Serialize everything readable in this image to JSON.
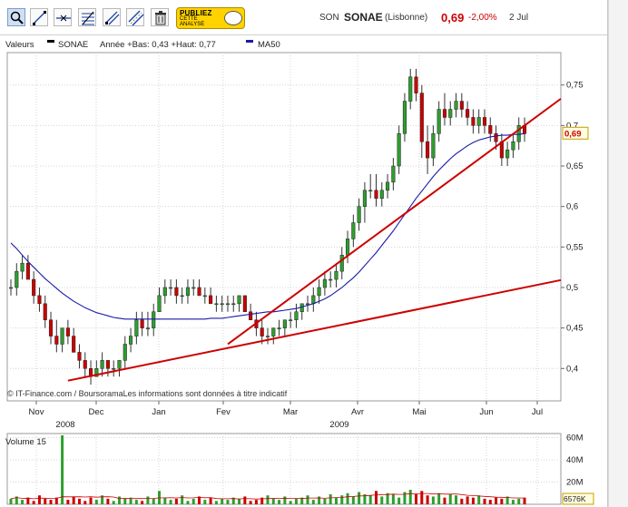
{
  "toolbar": {
    "tools": [
      "zoom-icon",
      "draw-line-icon",
      "horizontal-line-icon",
      "retracement-icon",
      "trend-channel-icon",
      "parallel-lines-icon",
      "trash-icon"
    ],
    "publish_button": {
      "line1": "PUBLIEZ",
      "line2": "CETTE",
      "line3": "ANALYSE"
    }
  },
  "quote": {
    "source": "SON",
    "name": "SONAE",
    "place": "(Lisbonne)",
    "price": "0,69",
    "change": "-2,00%",
    "date": "2 Jul",
    "up_color": "#2e9e2e",
    "down_color": "#cc0000"
  },
  "legend": {
    "values_label": "Valeurs",
    "series_name": "SONAE",
    "range_text": "Année +Bas: 0,43 +Haut: 0,77",
    "ma_name": "MA50",
    "ma_color": "#1a1aa8"
  },
  "footer": "© IT-Finance.com / BoursoramaLes informations sont données à titre indicatif",
  "chart_data": [
    {
      "type": "candlestick",
      "title": "SONAE",
      "x_tick_labels": [
        "Nov",
        "Dec",
        "Jan",
        "Fev",
        "Mar",
        "Avr",
        "Mai",
        "Jun",
        "Jul"
      ],
      "x_year_labels": [
        "2008",
        "2009"
      ],
      "y_tick_labels": [
        "0,4",
        "0,45",
        "0,5",
        "0,55",
        "0,6",
        "0,65",
        "0,7",
        "0,75"
      ],
      "ylim": [
        0.36,
        0.79
      ],
      "grid": true,
      "last_value_label": "0,69",
      "ohlc": [
        [
          0.5,
          0.51,
          0.49,
          0.5
        ],
        [
          0.5,
          0.53,
          0.49,
          0.52
        ],
        [
          0.52,
          0.54,
          0.51,
          0.53
        ],
        [
          0.53,
          0.54,
          0.51,
          0.51
        ],
        [
          0.51,
          0.52,
          0.48,
          0.49
        ],
        [
          0.49,
          0.5,
          0.47,
          0.48
        ],
        [
          0.48,
          0.49,
          0.45,
          0.46
        ],
        [
          0.46,
          0.47,
          0.43,
          0.44
        ],
        [
          0.44,
          0.46,
          0.42,
          0.43
        ],
        [
          0.43,
          0.45,
          0.42,
          0.45
        ],
        [
          0.45,
          0.46,
          0.43,
          0.44
        ],
        [
          0.44,
          0.45,
          0.42,
          0.42
        ],
        [
          0.42,
          0.43,
          0.4,
          0.41
        ],
        [
          0.41,
          0.42,
          0.39,
          0.4
        ],
        [
          0.4,
          0.41,
          0.38,
          0.39
        ],
        [
          0.39,
          0.41,
          0.39,
          0.4
        ],
        [
          0.4,
          0.42,
          0.39,
          0.41
        ],
        [
          0.41,
          0.41,
          0.39,
          0.4
        ],
        [
          0.4,
          0.41,
          0.39,
          0.4
        ],
        [
          0.4,
          0.41,
          0.39,
          0.41
        ],
        [
          0.41,
          0.44,
          0.4,
          0.43
        ],
        [
          0.43,
          0.45,
          0.42,
          0.44
        ],
        [
          0.44,
          0.47,
          0.43,
          0.46
        ],
        [
          0.46,
          0.47,
          0.44,
          0.45
        ],
        [
          0.45,
          0.47,
          0.44,
          0.45
        ],
        [
          0.45,
          0.48,
          0.44,
          0.47
        ],
        [
          0.47,
          0.5,
          0.47,
          0.49
        ],
        [
          0.49,
          0.51,
          0.48,
          0.5
        ],
        [
          0.5,
          0.51,
          0.49,
          0.5
        ],
        [
          0.5,
          0.51,
          0.48,
          0.49
        ],
        [
          0.49,
          0.5,
          0.48,
          0.49
        ],
        [
          0.49,
          0.51,
          0.48,
          0.5
        ],
        [
          0.5,
          0.51,
          0.49,
          0.5
        ],
        [
          0.5,
          0.51,
          0.49,
          0.49
        ],
        [
          0.49,
          0.5,
          0.48,
          0.49
        ],
        [
          0.49,
          0.5,
          0.48,
          0.48
        ],
        [
          0.48,
          0.49,
          0.47,
          0.48
        ],
        [
          0.48,
          0.49,
          0.47,
          0.48
        ],
        [
          0.48,
          0.49,
          0.47,
          0.48
        ],
        [
          0.48,
          0.49,
          0.47,
          0.48
        ],
        [
          0.48,
          0.49,
          0.47,
          0.49
        ],
        [
          0.49,
          0.49,
          0.47,
          0.47
        ],
        [
          0.47,
          0.48,
          0.46,
          0.46
        ],
        [
          0.46,
          0.47,
          0.44,
          0.45
        ],
        [
          0.45,
          0.46,
          0.43,
          0.44
        ],
        [
          0.44,
          0.45,
          0.43,
          0.44
        ],
        [
          0.44,
          0.45,
          0.43,
          0.45
        ],
        [
          0.45,
          0.46,
          0.44,
          0.45
        ],
        [
          0.45,
          0.46,
          0.44,
          0.46
        ],
        [
          0.46,
          0.47,
          0.45,
          0.46
        ],
        [
          0.46,
          0.48,
          0.45,
          0.47
        ],
        [
          0.47,
          0.48,
          0.46,
          0.48
        ],
        [
          0.48,
          0.49,
          0.47,
          0.48
        ],
        [
          0.48,
          0.5,
          0.47,
          0.49
        ],
        [
          0.49,
          0.51,
          0.48,
          0.5
        ],
        [
          0.5,
          0.52,
          0.49,
          0.51
        ],
        [
          0.51,
          0.52,
          0.5,
          0.51
        ],
        [
          0.51,
          0.53,
          0.5,
          0.52
        ],
        [
          0.52,
          0.55,
          0.51,
          0.54
        ],
        [
          0.54,
          0.57,
          0.53,
          0.56
        ],
        [
          0.56,
          0.59,
          0.55,
          0.58
        ],
        [
          0.58,
          0.61,
          0.57,
          0.6
        ],
        [
          0.6,
          0.63,
          0.58,
          0.62
        ],
        [
          0.62,
          0.64,
          0.61,
          0.62
        ],
        [
          0.62,
          0.64,
          0.6,
          0.61
        ],
        [
          0.61,
          0.63,
          0.6,
          0.62
        ],
        [
          0.62,
          0.64,
          0.61,
          0.63
        ],
        [
          0.63,
          0.66,
          0.62,
          0.65
        ],
        [
          0.65,
          0.7,
          0.64,
          0.69
        ],
        [
          0.69,
          0.74,
          0.68,
          0.73
        ],
        [
          0.73,
          0.77,
          0.72,
          0.76
        ],
        [
          0.76,
          0.77,
          0.73,
          0.74
        ],
        [
          0.74,
          0.75,
          0.66,
          0.68
        ],
        [
          0.68,
          0.7,
          0.64,
          0.66
        ],
        [
          0.66,
          0.7,
          0.65,
          0.69
        ],
        [
          0.69,
          0.73,
          0.68,
          0.72
        ],
        [
          0.72,
          0.74,
          0.7,
          0.71
        ],
        [
          0.71,
          0.73,
          0.7,
          0.72
        ],
        [
          0.72,
          0.74,
          0.71,
          0.73
        ],
        [
          0.73,
          0.74,
          0.71,
          0.72
        ],
        [
          0.72,
          0.73,
          0.7,
          0.71
        ],
        [
          0.71,
          0.72,
          0.69,
          0.7
        ],
        [
          0.7,
          0.72,
          0.69,
          0.71
        ],
        [
          0.71,
          0.72,
          0.69,
          0.7
        ],
        [
          0.7,
          0.71,
          0.68,
          0.69
        ],
        [
          0.69,
          0.7,
          0.67,
          0.68
        ],
        [
          0.68,
          0.69,
          0.65,
          0.66
        ],
        [
          0.66,
          0.68,
          0.65,
          0.67
        ],
        [
          0.67,
          0.69,
          0.66,
          0.68
        ],
        [
          0.68,
          0.71,
          0.67,
          0.7
        ],
        [
          0.7,
          0.71,
          0.68,
          0.69
        ]
      ],
      "ma50": [
        0.555,
        0.548,
        0.54,
        0.532,
        0.525,
        0.518,
        0.511,
        0.505,
        0.499,
        0.493,
        0.488,
        0.483,
        0.479,
        0.475,
        0.472,
        0.469,
        0.467,
        0.465,
        0.463,
        0.462,
        0.461,
        0.461,
        0.461,
        0.461,
        0.461,
        0.461,
        0.461,
        0.461,
        0.461,
        0.461,
        0.461,
        0.461,
        0.461,
        0.461,
        0.461,
        0.462,
        0.462,
        0.462,
        0.463,
        0.464,
        0.465,
        0.466,
        0.467,
        0.468,
        0.469,
        0.47,
        0.47,
        0.471,
        0.472,
        0.473,
        0.474,
        0.476,
        0.478,
        0.48,
        0.483,
        0.486,
        0.49,
        0.495,
        0.5,
        0.506,
        0.512,
        0.519,
        0.527,
        0.535,
        0.543,
        0.552,
        0.561,
        0.57,
        0.58,
        0.59,
        0.6,
        0.61,
        0.619,
        0.628,
        0.637,
        0.645,
        0.652,
        0.659,
        0.665,
        0.67,
        0.675,
        0.679,
        0.682,
        0.684,
        0.686,
        0.687,
        0.688,
        0.688,
        0.689,
        0.689,
        0.69
      ],
      "trendlines": [
        {
          "from": [
            10,
            0.385
          ],
          "to": [
            90,
            0.5
          ],
          "color": "#cc0000"
        },
        {
          "from": [
            38,
            0.43
          ],
          "to": [
            90,
            0.7
          ],
          "color": "#cc0000"
        }
      ]
    },
    {
      "type": "bar",
      "title": "Volume",
      "ylabel": "Volume",
      "legend_value": "15",
      "y_tick_labels": [
        "20M",
        "40M",
        "60M"
      ],
      "ylim": [
        0,
        60000000
      ],
      "last_value_label": "6576K",
      "values": [
        5,
        7,
        4,
        6,
        3,
        8,
        5,
        4,
        6,
        62,
        4,
        7,
        5,
        3,
        6,
        4,
        8,
        5,
        3,
        7,
        5,
        6,
        4,
        3,
        7,
        5,
        12,
        6,
        4,
        5,
        8,
        3,
        5,
        7,
        4,
        6,
        3,
        5,
        4,
        6,
        5,
        7,
        3,
        4,
        6,
        8,
        5,
        4,
        7,
        3,
        5,
        6,
        8,
        4,
        7,
        5,
        9,
        6,
        8,
        10,
        7,
        11,
        9,
        8,
        12,
        7,
        10,
        9,
        6,
        11,
        13,
        9,
        12,
        8,
        7,
        10,
        6,
        9,
        8,
        5,
        7,
        6,
        8,
        5,
        4,
        6,
        5,
        7,
        4,
        5,
        6
      ]
    }
  ]
}
